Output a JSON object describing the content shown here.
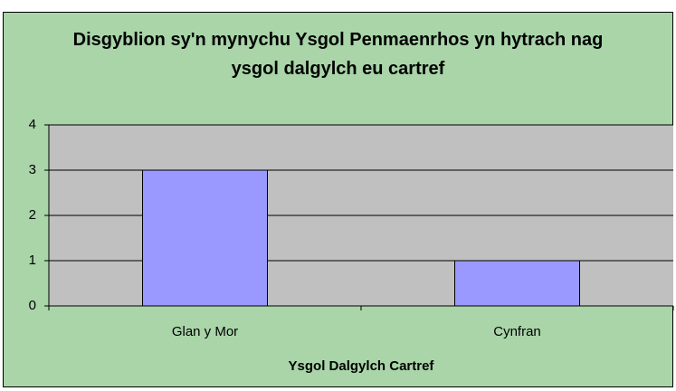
{
  "chart_data": {
    "type": "bar",
    "title": "Disgyblion sy'n mynychu Ysgol Penmaenrhos yn hytrach nag ysgol dalgylch eu cartref",
    "x_label": "Ysgol Dalgylch Cartref",
    "categories": [
      "Glan y Mor",
      "Cynfran"
    ],
    "values": [
      3,
      1
    ],
    "color": "#9999ff",
    "ylim": [
      0,
      4
    ],
    "yticks": [
      0,
      1,
      2,
      3,
      4
    ],
    "grid": true
  }
}
